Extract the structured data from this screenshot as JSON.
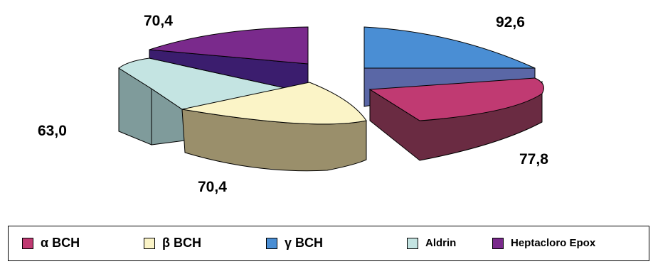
{
  "chart_data": {
    "type": "pie",
    "style": "3d-exploded",
    "categories": [
      "γ BCH",
      "α BCH",
      "β BCH",
      "Aldrin",
      "Heptacloro Epox"
    ],
    "values": [
      92.6,
      77.8,
      70.4,
      63.0,
      70.4
    ],
    "data_labels": [
      "92,6",
      "77,8",
      "70,4",
      "63,0",
      "70,4"
    ],
    "colors": {
      "gamma": "#4a8ed4",
      "alpha": "#c03a72",
      "beta": "#fbf4c7",
      "aldrin": "#c4e4e2",
      "hepta": "#7a2a8c"
    },
    "legend_position": "bottom"
  },
  "legend": {
    "items": [
      {
        "label": "α BCH",
        "color": "#c03a72"
      },
      {
        "label": "β BCH",
        "color": "#fbf4c7"
      },
      {
        "label": "γ BCH",
        "color": "#4a8ed4"
      },
      {
        "label": "Aldrin",
        "color": "#c4e4e2"
      },
      {
        "label": "Heptacloro Epox",
        "color": "#7a2a8c"
      }
    ]
  }
}
